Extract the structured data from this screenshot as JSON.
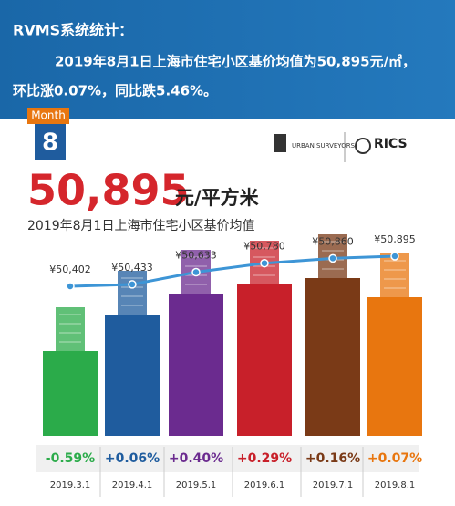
{
  "header": {
    "title": "RVMS系统统计：",
    "line1": "2019年8月1日上海市住宅小区基价均值为50,895元/㎡，",
    "line2": "环比涨0.07%，同比跌5.46%。"
  },
  "badge": {
    "label": "Month",
    "number": "8"
  },
  "logos": {
    "left": "URBAN SURVEYORS",
    "right": "RICS"
  },
  "headline": {
    "value": "50,895",
    "unit": "元/平方米"
  },
  "chart_data": {
    "type": "line",
    "title": "2019年8月1日上海市住宅小区基价均值",
    "categories": [
      "2019.3.1",
      "2019.4.1",
      "2019.5.1",
      "2019.6.1",
      "2019.7.1",
      "2019.8.1"
    ],
    "values": [
      50402,
      50433,
      50633,
      50780,
      50860,
      50895
    ],
    "value_labels": [
      "¥50,402",
      "¥50,433",
      "¥50,633",
      "¥50,780",
      "¥50,860",
      "¥50,895"
    ],
    "changes": [
      "-0.59%",
      "+0.06%",
      "+0.40%",
      "+0.29%",
      "+0.16%",
      "+0.07%"
    ],
    "color": "#3d95d6",
    "bar_colors": [
      "#2bab4a",
      "#1f5c9e",
      "#6b2b8f",
      "#c8202a",
      "#7a3a17",
      "#e8760f"
    ]
  }
}
